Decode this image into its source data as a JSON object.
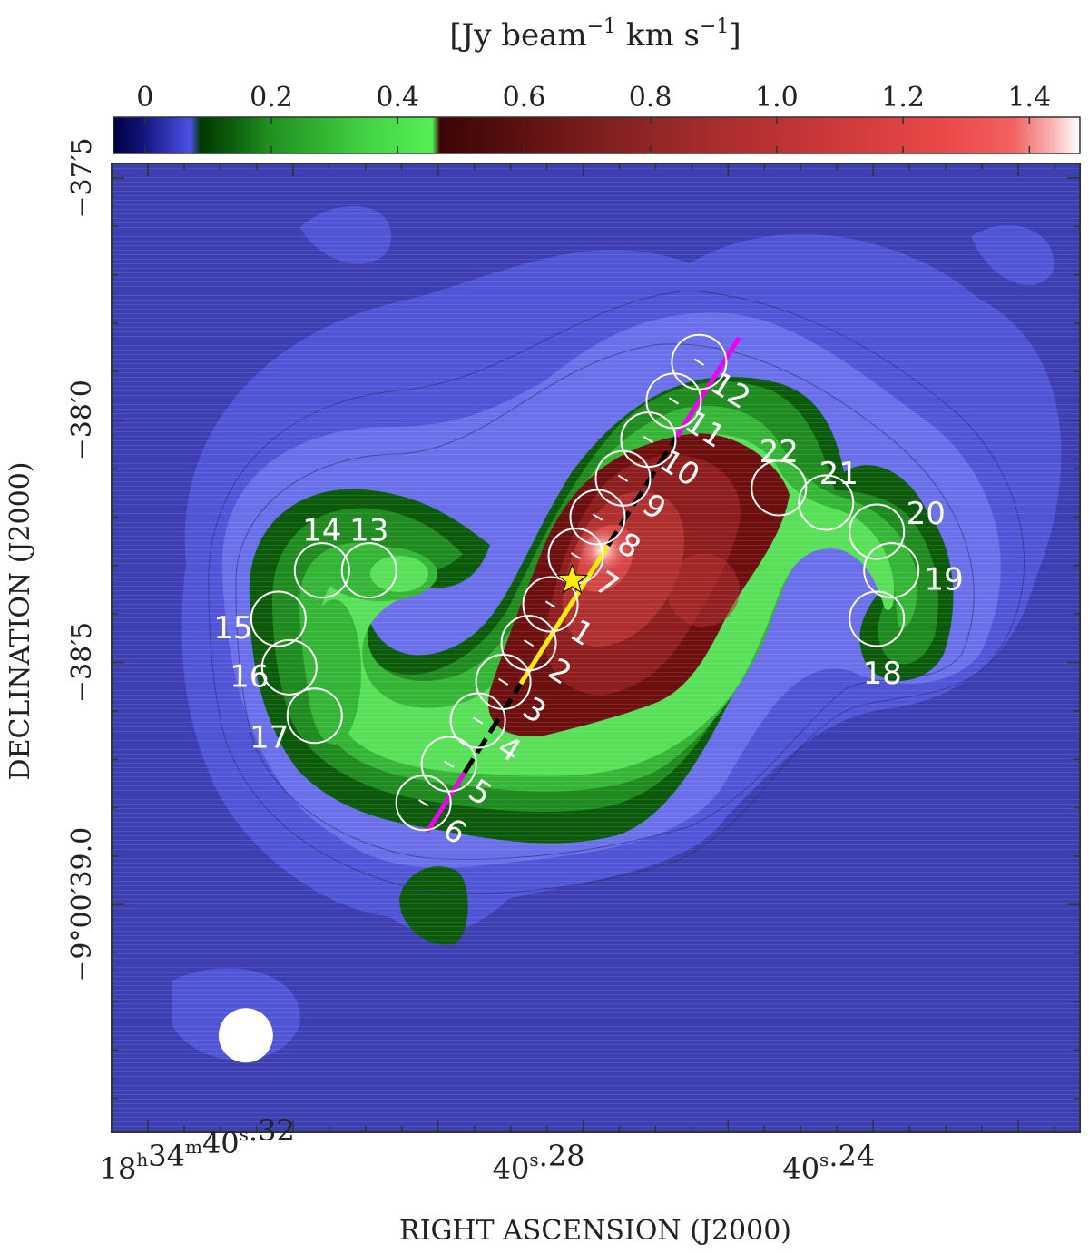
{
  "chart_data": {
    "type": "heatmap",
    "colorbar": {
      "unit_parts": {
        "open": "[Jy beam",
        "exp": "−1",
        "mid": " km s",
        "close": "]"
      },
      "ticks": [
        "0",
        "0.2",
        "0.4",
        "0.6",
        "0.8",
        "1.0",
        "1.2",
        "1.4"
      ],
      "range": [
        -0.05,
        1.48
      ]
    },
    "x_axis": {
      "label": "RIGHT ASCENSION (J2000)",
      "ticks": [
        {
          "ra_s": 40.32,
          "parts": [
            "18",
            "h",
            "34",
            "m",
            "40",
            "s",
            ".32"
          ]
        },
        {
          "ra_s": 40.28,
          "parts": [
            "",
            "",
            "",
            "",
            "40",
            "s",
            ".28"
          ]
        },
        {
          "ra_s": 40.24,
          "parts": [
            "",
            "",
            "",
            "",
            "40",
            "s",
            ".24"
          ]
        }
      ],
      "range_s": [
        40.345,
        40.2115
      ]
    },
    "y_axis": {
      "label": "DECLINATION (J2000)",
      "ticks": [
        {
          "dec_arcsec": 37.5,
          "text": "−37′5"
        },
        {
          "dec_arcsec": 38.0,
          "text": "−38′0"
        },
        {
          "dec_arcsec": 38.5,
          "text": "−38′5"
        },
        {
          "dec_arcsec": 39.0,
          "text": "−9°00′39.0"
        }
      ],
      "range_arcsec": [
        37.47,
        39.47
      ]
    },
    "colors": {
      "background": "#3b3fb2",
      "levels": [
        "#4f55d6",
        "#6a6fea",
        "#0a5a0a",
        "#1f8a1f",
        "#35b535",
        "#59e059",
        "#6e0f0f",
        "#8e1d1d",
        "#b03030",
        "#d84444"
      ],
      "star": "#ffee00",
      "outflow_inner": "#ffee00",
      "outflow_mid": "#000000",
      "outflow_outer": "#ee00ee",
      "beam": "#ffffff"
    },
    "star_position": {
      "ra_s": 40.2815,
      "dec_arcsec": 38.33
    },
    "beam": {
      "ra_s": 40.3265,
      "dec_arcsec": 39.27
    },
    "outflow_axis": {
      "start": {
        "ra_s": 40.3015,
        "dec_arcsec": 38.85
      },
      "end": {
        "ra_s": 40.2585,
        "dec_arcsec": 37.83
      }
    },
    "apertures": [
      {
        "id": "1",
        "ra_s": 40.2845,
        "dec_arcsec": 38.38
      },
      {
        "id": "2",
        "ra_s": 40.2875,
        "dec_arcsec": 38.46
      },
      {
        "id": "3",
        "ra_s": 40.291,
        "dec_arcsec": 38.54
      },
      {
        "id": "4",
        "ra_s": 40.2945,
        "dec_arcsec": 38.62
      },
      {
        "id": "5",
        "ra_s": 40.2985,
        "dec_arcsec": 38.71
      },
      {
        "id": "6",
        "ra_s": 40.302,
        "dec_arcsec": 38.79
      },
      {
        "id": "7",
        "ra_s": 40.281,
        "dec_arcsec": 38.28
      },
      {
        "id": "8",
        "ra_s": 40.278,
        "dec_arcsec": 38.2
      },
      {
        "id": "9",
        "ra_s": 40.2745,
        "dec_arcsec": 38.12
      },
      {
        "id": "10",
        "ra_s": 40.271,
        "dec_arcsec": 38.04
      },
      {
        "id": "11",
        "ra_s": 40.2675,
        "dec_arcsec": 37.96
      },
      {
        "id": "12",
        "ra_s": 40.264,
        "dec_arcsec": 37.88
      },
      {
        "id": "13",
        "ra_s": 40.3095,
        "dec_arcsec": 38.31
      },
      {
        "id": "14",
        "ra_s": 40.316,
        "dec_arcsec": 38.31
      },
      {
        "id": "15",
        "ra_s": 40.322,
        "dec_arcsec": 38.41
      },
      {
        "id": "16",
        "ra_s": 40.3205,
        "dec_arcsec": 38.51
      },
      {
        "id": "17",
        "ra_s": 40.317,
        "dec_arcsec": 38.61
      },
      {
        "id": "18",
        "ra_s": 40.2395,
        "dec_arcsec": 38.41
      },
      {
        "id": "19",
        "ra_s": 40.2375,
        "dec_arcsec": 38.31
      },
      {
        "id": "20",
        "ra_s": 40.2395,
        "dec_arcsec": 38.23
      },
      {
        "id": "21",
        "ra_s": 40.2465,
        "dec_arcsec": 38.17
      },
      {
        "id": "22",
        "ra_s": 40.253,
        "dec_arcsec": 38.14
      }
    ]
  }
}
